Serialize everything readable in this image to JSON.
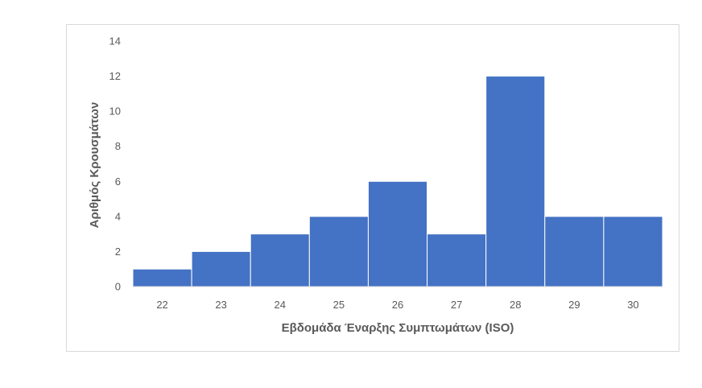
{
  "chart_data": {
    "type": "bar",
    "title": "",
    "xlabel": "Εβδομάδα Έναρξης Συμπτωμάτων (ISO)",
    "ylabel": "Αριθμός Κρουσμάτων",
    "categories": [
      "22",
      "23",
      "24",
      "25",
      "26",
      "27",
      "28",
      "29",
      "30"
    ],
    "values": [
      1,
      2,
      3,
      4,
      6,
      3,
      12,
      4,
      4
    ],
    "ylim": [
      0,
      14
    ],
    "yticks": [
      "0",
      "2",
      "4",
      "6",
      "8",
      "10",
      "12",
      "14"
    ],
    "grid": false,
    "legend": "none",
    "bar_color": "#4472C4",
    "bar_gap": "none (histogram)"
  }
}
